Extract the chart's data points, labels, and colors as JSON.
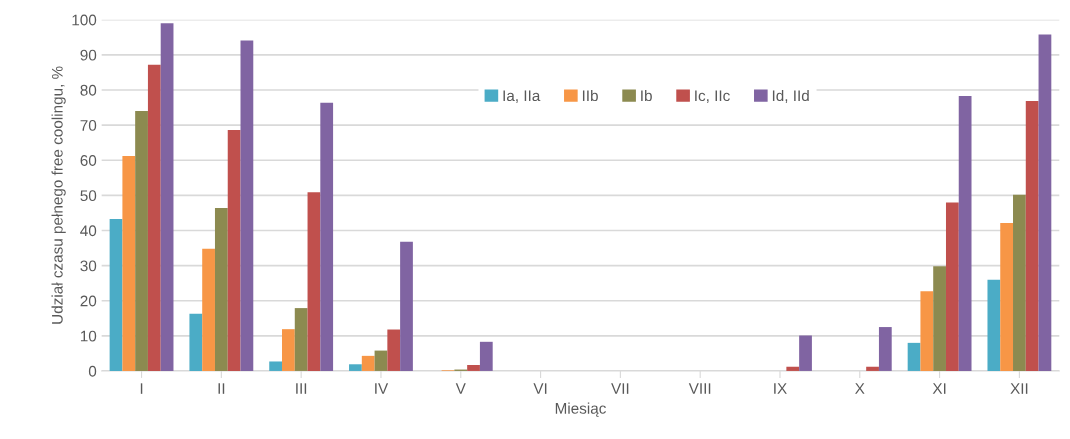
{
  "chart_data": {
    "type": "bar",
    "xlabel": "Miesiąc",
    "ylabel": "Udział czasu pełnego free coolingu, %",
    "categories": [
      "I",
      "II",
      "III",
      "IV",
      "V",
      "VI",
      "VII",
      "VIII",
      "IX",
      "X",
      "XI",
      "XII"
    ],
    "series": [
      {
        "name": "Ia, IIa",
        "color": "#4bacc6",
        "values": [
          43.3,
          16.3,
          2.7,
          1.9,
          0,
          0,
          0,
          0,
          0,
          0,
          8,
          26
        ]
      },
      {
        "name": "IIb",
        "color": "#f79646",
        "values": [
          61.2,
          34.8,
          11.9,
          4.3,
          0.2,
          0,
          0,
          0,
          0,
          0,
          22.7,
          42.1
        ]
      },
      {
        "name": "Ib",
        "color": "#8c8a50",
        "values": [
          74,
          46.4,
          17.9,
          5.8,
          0.4,
          0,
          0,
          0,
          0,
          0,
          29.8,
          50.2
        ]
      },
      {
        "name": "Ic, IIc",
        "color": "#c0504d",
        "values": [
          87.2,
          68.6,
          50.9,
          11.8,
          1.7,
          0,
          0,
          0,
          1.2,
          1.2,
          48,
          76.9
        ]
      },
      {
        "name": "Id, IId",
        "color": "#8064a2",
        "values": [
          99,
          94.1,
          76.4,
          36.8,
          8.3,
          0,
          0,
          0,
          10.1,
          12.5,
          78.3,
          95.8
        ]
      }
    ],
    "ylim": [
      0,
      100
    ],
    "yticks": [
      0,
      10,
      20,
      30,
      40,
      50,
      60,
      70,
      80,
      90,
      100
    ],
    "grid": "y",
    "legend": "top"
  }
}
